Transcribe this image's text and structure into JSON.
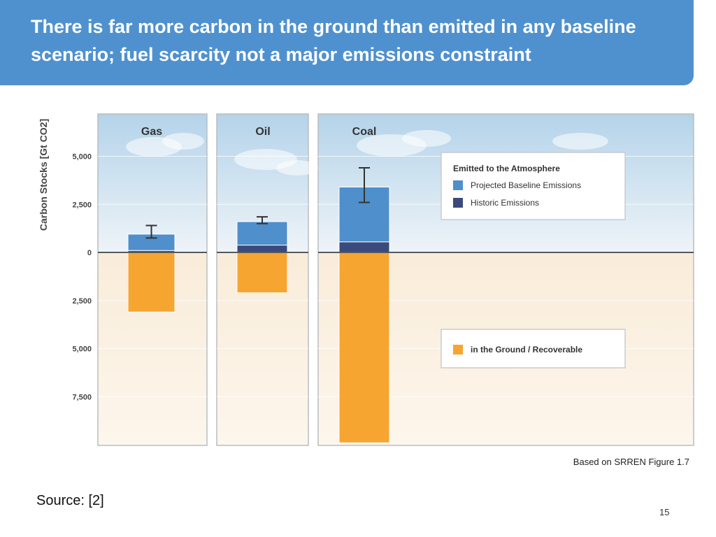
{
  "slide": {
    "title": "There is far more carbon in the ground than emitted in any baseline scenario; fuel scarcity not a major emissions constraint",
    "credit": "Based on SRREN Figure 1.7",
    "source": "Source:  [2]",
    "page_number": "15"
  },
  "chart_data": {
    "type": "bar",
    "ylabel": "Carbon Stocks [Gt CO2]",
    "ylim": [
      -10000,
      7000
    ],
    "y_tick_labels": [
      "5,000",
      "2,500",
      "0",
      "2,500",
      "5,000",
      "7,500"
    ],
    "y_tick_values": [
      5000,
      2500,
      0,
      -2500,
      -5000,
      -7500
    ],
    "categories": [
      "Gas",
      "Oil",
      "Coal"
    ],
    "series": [
      {
        "name": "Historic Emissions",
        "values": [
          100,
          380,
          550
        ],
        "color": "#3a4a7c"
      },
      {
        "name": "Projected Baseline Emissions",
        "values": [
          850,
          1220,
          2850
        ],
        "color": "#4f8fcb"
      },
      {
        "name": "in the Ground  / Recoverable",
        "values": [
          -3100,
          -2100,
          -9900
        ],
        "color": "#f7a531"
      }
    ],
    "error_bars": [
      {
        "low": 750,
        "high": 1400
      },
      {
        "low": 1500,
        "high": 1850
      },
      {
        "low": 2600,
        "high": 4400
      }
    ],
    "legend": {
      "top_title": "Emitted to the Atmosphere",
      "top_entries": [
        "Projected Baseline Emissions",
        "Historic Emissions"
      ],
      "bottom_entries": [
        "in the Ground  / Recoverable"
      ],
      "placement": "right"
    }
  }
}
